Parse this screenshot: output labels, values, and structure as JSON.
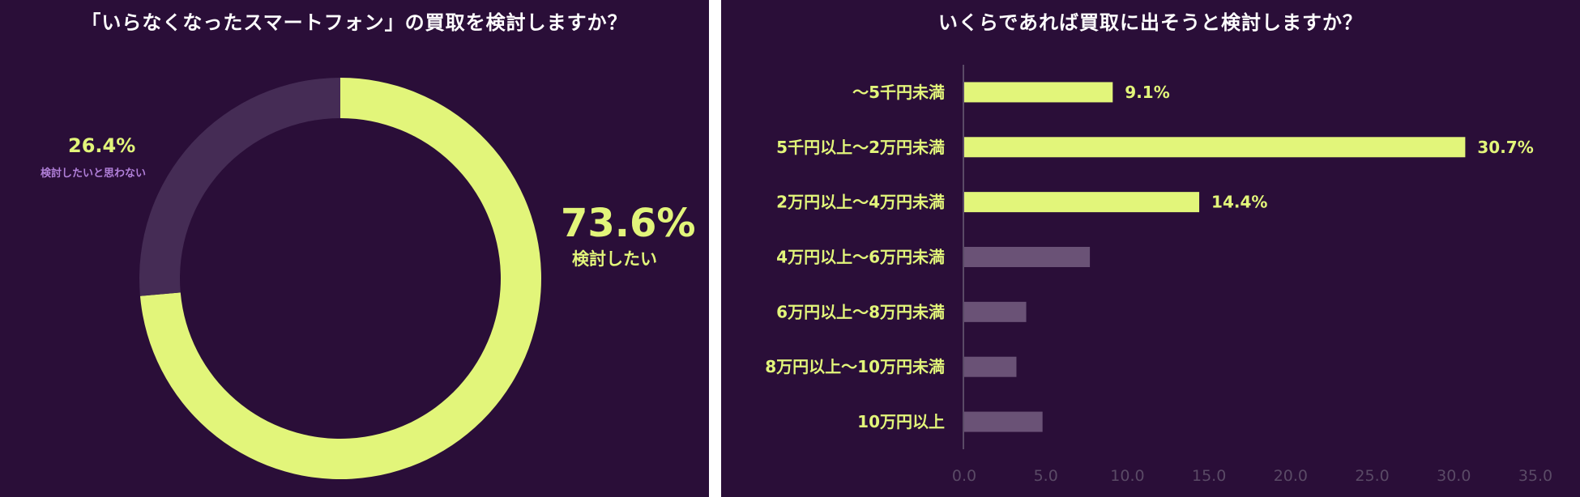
{
  "colors": {
    "background": "#2a0e38",
    "accent": "#e2f57a",
    "muted": "#6a5276",
    "donut_muted": "#452c55",
    "label_purple": "#b07fd8",
    "axis": "#5a4a66"
  },
  "chart_data": [
    {
      "type": "pie",
      "variant": "donut",
      "title": "「いらなくなったスマートフォン」の買取を検討しますか？",
      "slices": [
        {
          "label": "検討したい",
          "value": 73.6,
          "value_label": "73.6%",
          "color": "#e2f57a"
        },
        {
          "label": "検討したいと思わない",
          "value": 26.4,
          "value_label": "26.4%",
          "color": "#452c55"
        }
      ]
    },
    {
      "type": "bar",
      "orientation": "horizontal",
      "title": "いくらであれば買取に出そうと検討しますか？",
      "categories": [
        "〜5千円未満",
        "5千円以上〜2万円未満",
        "2万円以上〜4万円未満",
        "4万円以上〜6万円未満",
        "6万円以上〜8万円未満",
        "8万円以上〜10万円未満",
        "10万円以上"
      ],
      "values": [
        9.1,
        30.7,
        14.4,
        7.7,
        3.8,
        3.2,
        4.8
      ],
      "data_labels": [
        "9.1%",
        "30.7%",
        "14.4%",
        "",
        "",
        "",
        ""
      ],
      "highlighted": [
        true,
        true,
        true,
        false,
        false,
        false,
        false
      ],
      "xlim": [
        0,
        35
      ],
      "xticks": [
        0,
        5,
        10,
        15,
        20,
        25,
        30,
        35
      ],
      "xtick_labels": [
        "0.0",
        "5.0",
        "10.0",
        "15.0",
        "20.0",
        "25.0",
        "30.0",
        "35.0"
      ],
      "grid": false
    }
  ]
}
